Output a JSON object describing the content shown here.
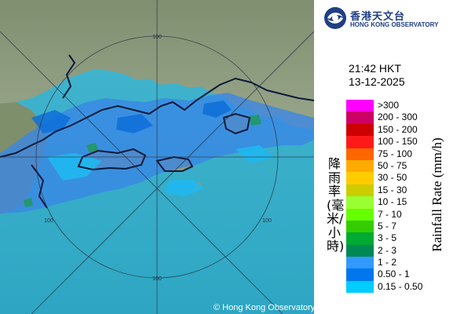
{
  "map": {
    "copyright": "© Hong Kong Observatory",
    "range_ring_labels": [
      "100",
      "100",
      "100",
      "100"
    ],
    "colors": {
      "sea": "#3fb0c9",
      "land": "#8a9a78",
      "coast": "#0a1a3a",
      "rings": "#2a3340"
    }
  },
  "logo": {
    "chinese": "香港天文台",
    "english": "HONG KONG OBSERVATORY",
    "brand_color": "#1f3f86",
    "icon": "hko-emblem-icon"
  },
  "timestamp": {
    "time": "21:42 HKT",
    "date": "13-12-2025"
  },
  "legend": {
    "title_zh": "降雨率(毫米/小時)",
    "title_en": "Rainfall Rate (mm/h)",
    "entries": [
      {
        "label": ">300",
        "color": "#ff00ff"
      },
      {
        "label": "200 - 300",
        "color": "#cc0066"
      },
      {
        "label": "150 - 200",
        "color": "#cc0000"
      },
      {
        "label": "100 - 150",
        "color": "#ff1a1a"
      },
      {
        "label": "75 - 100",
        "color": "#ff6600"
      },
      {
        "label": "50 - 75",
        "color": "#ffaa00"
      },
      {
        "label": "30 - 50",
        "color": "#ffcc00"
      },
      {
        "label": "15 - 30",
        "color": "#cccc00"
      },
      {
        "label": "10 - 15",
        "color": "#99ff33"
      },
      {
        "label": "7 - 10",
        "color": "#66ff00"
      },
      {
        "label": "5 - 7",
        "color": "#33cc00"
      },
      {
        "label": "3 - 5",
        "color": "#00aa33"
      },
      {
        "label": "2 - 3",
        "color": "#008855"
      },
      {
        "label": "1 - 2",
        "color": "#3399ff"
      },
      {
        "label": "0.50 - 1",
        "color": "#0077ee"
      },
      {
        "label": "0.15 - 0.50",
        "color": "#00ccff"
      }
    ]
  }
}
